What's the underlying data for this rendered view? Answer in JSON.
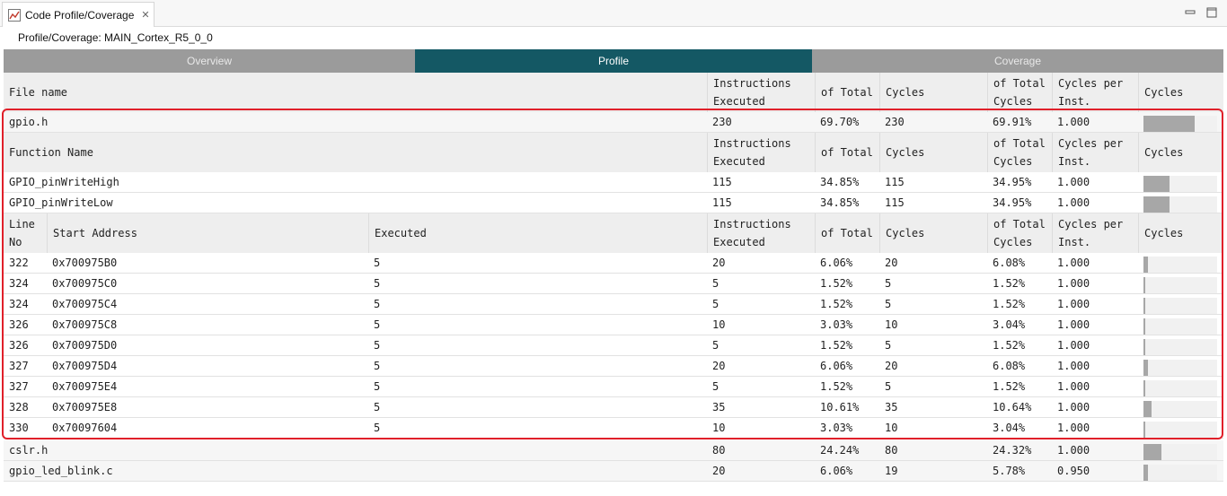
{
  "view": {
    "title": "Code Profile/Coverage",
    "tab_icon": "chart-icon",
    "close_icon": "close-icon",
    "minimize_icon": "minimize-icon",
    "maximize_icon": "maximize-icon"
  },
  "subtitle": "Profile/Coverage: MAIN_Cortex_R5_0_0",
  "main_tabs": [
    {
      "label": "Overview",
      "active": false
    },
    {
      "label": "Profile",
      "active": true
    },
    {
      "label": "Coverage",
      "active": false
    }
  ],
  "colors": {
    "active_tab": "#145864",
    "inactive_tab": "#9b9b9b",
    "header_bg": "#eeeeee",
    "highlight_border": "#e0202a",
    "bar_fill": "#a7a7a7"
  },
  "file_header": [
    "File name",
    "Instructions Executed",
    "of Total",
    "Cycles",
    "of Total Cycles",
    "Cycles per Inst.",
    "Cycles"
  ],
  "function_header": [
    "Function Name",
    "Instructions Executed",
    "of Total",
    "Cycles",
    "of Total Cycles",
    "Cycles per Inst.",
    "Cycles"
  ],
  "line_header": [
    "Line No",
    "Start Address",
    "Executed",
    "Instructions Executed",
    "of Total",
    "Cycles",
    "of Total Cycles",
    "Cycles per Inst.",
    "Cycles"
  ],
  "files": [
    {
      "name": "gpio.h",
      "instr": "230",
      "of_total": "69.70%",
      "cycles": "230",
      "of_total_cycles": "69.91%",
      "cpi": "1.000",
      "bar": 0.6991
    },
    {
      "name": "cslr.h",
      "instr": "80",
      "of_total": "24.24%",
      "cycles": "80",
      "of_total_cycles": "24.32%",
      "cpi": "1.000",
      "bar": 0.2432
    },
    {
      "name": "gpio_led_blink.c",
      "instr": "20",
      "of_total": "6.06%",
      "cycles": "19",
      "of_total_cycles": "5.78%",
      "cpi": "0.950",
      "bar": 0.0578
    }
  ],
  "functions": [
    {
      "name": "GPIO_pinWriteHigh",
      "instr": "115",
      "of_total": "34.85%",
      "cycles": "115",
      "of_total_cycles": "34.95%",
      "cpi": "1.000",
      "bar": 0.3495
    },
    {
      "name": "GPIO_pinWriteLow",
      "instr": "115",
      "of_total": "34.85%",
      "cycles": "115",
      "of_total_cycles": "34.95%",
      "cpi": "1.000",
      "bar": 0.3495
    }
  ],
  "lines": [
    {
      "line": "322",
      "addr": "0x700975B0",
      "executed": "5",
      "instr": "20",
      "of_total": "6.06%",
      "cycles": "20",
      "of_total_cycles": "6.08%",
      "cpi": "1.000",
      "bar": 0.0608
    },
    {
      "line": "324",
      "addr": "0x700975C0",
      "executed": "5",
      "instr": "5",
      "of_total": "1.52%",
      "cycles": "5",
      "of_total_cycles": "1.52%",
      "cpi": "1.000",
      "bar": 0.0152
    },
    {
      "line": "324",
      "addr": "0x700975C4",
      "executed": "5",
      "instr": "5",
      "of_total": "1.52%",
      "cycles": "5",
      "of_total_cycles": "1.52%",
      "cpi": "1.000",
      "bar": 0.0152
    },
    {
      "line": "326",
      "addr": "0x700975C8",
      "executed": "5",
      "instr": "10",
      "of_total": "3.03%",
      "cycles": "10",
      "of_total_cycles": "3.04%",
      "cpi": "1.000",
      "bar": 0.0304
    },
    {
      "line": "326",
      "addr": "0x700975D0",
      "executed": "5",
      "instr": "5",
      "of_total": "1.52%",
      "cycles": "5",
      "of_total_cycles": "1.52%",
      "cpi": "1.000",
      "bar": 0.0152
    },
    {
      "line": "327",
      "addr": "0x700975D4",
      "executed": "5",
      "instr": "20",
      "of_total": "6.06%",
      "cycles": "20",
      "of_total_cycles": "6.08%",
      "cpi": "1.000",
      "bar": 0.0608
    },
    {
      "line": "327",
      "addr": "0x700975E4",
      "executed": "5",
      "instr": "5",
      "of_total": "1.52%",
      "cycles": "5",
      "of_total_cycles": "1.52%",
      "cpi": "1.000",
      "bar": 0.0152
    },
    {
      "line": "328",
      "addr": "0x700975E8",
      "executed": "5",
      "instr": "35",
      "of_total": "10.61%",
      "cycles": "35",
      "of_total_cycles": "10.64%",
      "cpi": "1.000",
      "bar": 0.1064
    },
    {
      "line": "330",
      "addr": "0x70097604",
      "executed": "5",
      "instr": "10",
      "of_total": "3.03%",
      "cycles": "10",
      "of_total_cycles": "3.04%",
      "cpi": "1.000",
      "bar": 0.0304
    }
  ]
}
